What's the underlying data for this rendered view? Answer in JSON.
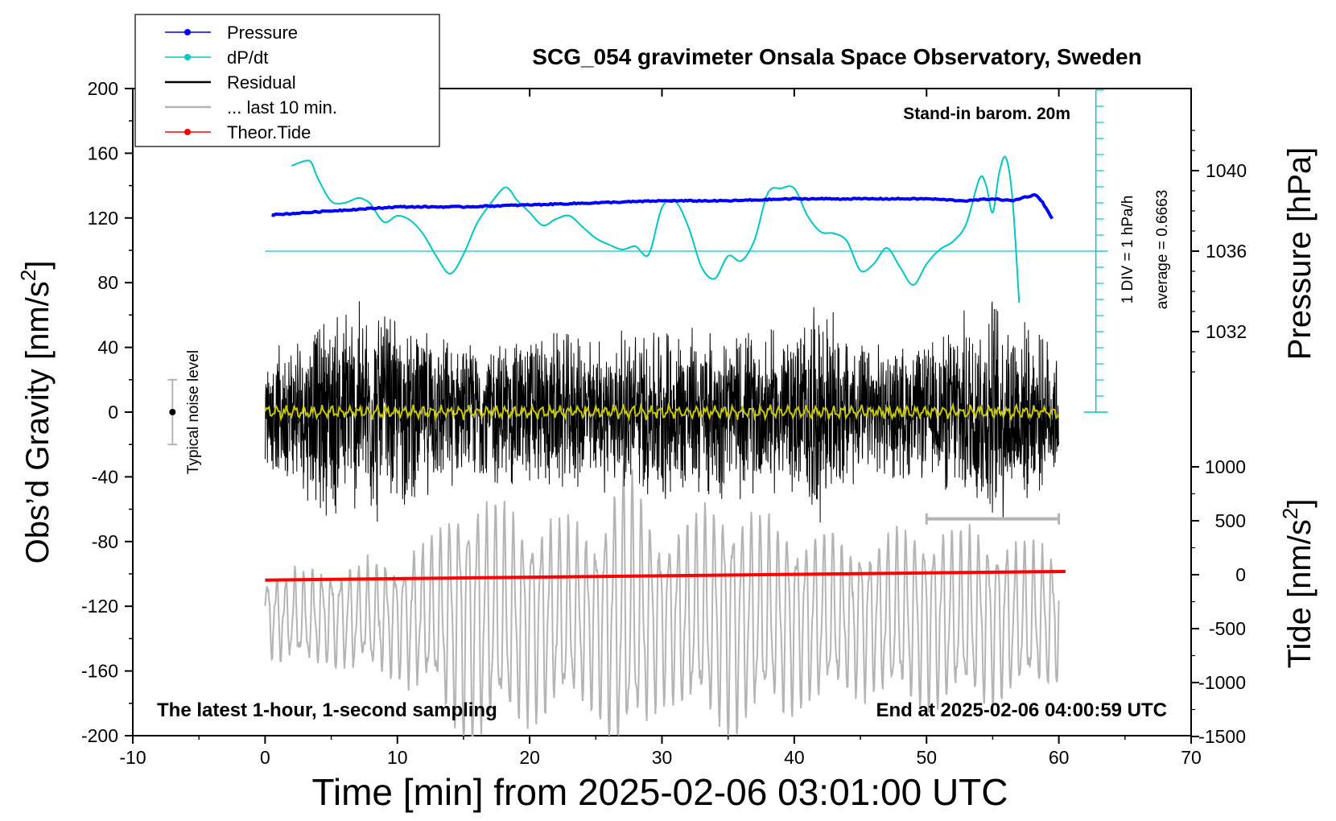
{
  "chart_data": {
    "type": "line",
    "title": "SCG_054 gravimeter Onsala Space Observatory, Sweden",
    "xlabel": "Time [min] from 2025-02-06 03:01:00 UTC",
    "ylabel_left": "Obs’d Gravity [nm/s",
    "ylabel_left_sup": "2",
    "ylabel_left_end": "]",
    "ylabel_right_pressure": "Pressure [hPa]",
    "ylabel_right_tide": "Tide [nm/s",
    "ylabel_right_tide_sup": "2",
    "ylabel_right_tide_end": "]",
    "xlim": [
      -10,
      70
    ],
    "ylim": [
      -200,
      200
    ],
    "x_ticks": [
      "-10",
      "0",
      "10",
      "20",
      "30",
      "40",
      "50",
      "60",
      "70"
    ],
    "y_ticks_left": [
      "200",
      "160",
      "120",
      "80",
      "40",
      "0",
      "-40",
      "-80",
      "-120",
      "-160",
      "-200"
    ],
    "pressure_ticks": [
      "1040",
      "1036",
      "1032"
    ],
    "tide_ticks": [
      "1000",
      "500",
      "0",
      "-500",
      "-1000",
      "-1500"
    ],
    "annotations": {
      "stand_in": "Stand-in barom. 20m",
      "div_label": "1 DIV = 1 hPa/h",
      "average_label": "average = 0.6663",
      "noise_label": "Typical noise level",
      "bottom_left": "The latest 1-hour, 1-second sampling",
      "bottom_right": "End at 2025-02-06 04:00:59 UTC"
    },
    "legend": [
      {
        "label": "Pressure",
        "color": "#0000ff",
        "marker": true
      },
      {
        "label": "dP/dt",
        "color": "#00c8c8",
        "marker": true
      },
      {
        "label": "Residual",
        "color": "#000000",
        "marker": false
      },
      {
        "label": "... last 10 min.",
        "color": "#b4b4b4",
        "marker": false
      },
      {
        "label": "Theor.Tide",
        "color": "#ff0000",
        "marker": true
      }
    ],
    "series": [
      {
        "name": "Pressure",
        "axis": "pressure_hPa",
        "color": "#0000ff",
        "x": [
          0.5,
          5,
          10,
          15,
          20,
          25,
          30,
          35,
          40,
          45,
          50,
          53,
          55,
          56.5,
          57.5,
          58.3,
          58.8,
          59.5
        ],
        "values": [
          1037.8,
          1038.0,
          1038.2,
          1038.2,
          1038.3,
          1038.4,
          1038.5,
          1038.5,
          1038.6,
          1038.6,
          1038.6,
          1038.5,
          1038.6,
          1038.5,
          1038.7,
          1038.8,
          1038.4,
          1037.6
        ]
      },
      {
        "name": "dP/dt",
        "axis": "pressure_div",
        "color": "#00c8c8",
        "x": [
          2,
          3,
          3.5,
          4,
          5,
          6,
          7,
          7.5,
          8,
          9,
          10,
          11,
          12,
          13,
          14,
          15,
          16,
          17,
          18,
          18.5,
          19,
          20,
          21,
          22,
          23,
          24,
          25,
          26,
          27,
          28,
          29,
          30,
          31,
          32,
          33,
          34,
          35,
          36,
          37,
          38,
          39,
          40,
          41,
          42,
          43,
          44,
          45,
          46,
          47,
          48,
          49,
          50,
          51,
          52,
          53,
          54,
          54.5,
          55,
          55.5,
          56,
          56.5,
          57
        ],
        "values": [
          5.3,
          5.6,
          5.5,
          4.5,
          3.1,
          3.0,
          3.3,
          3.2,
          2.9,
          1.8,
          2.2,
          1.9,
          1.0,
          -0.4,
          -1.4,
          -0.2,
          1.7,
          2.9,
          3.9,
          3.8,
          3.2,
          2.4,
          1.6,
          2.0,
          2.2,
          1.5,
          0.8,
          0.4,
          0.1,
          0.3,
          -0.2,
          2.7,
          3.1,
          1.5,
          -1.0,
          -1.7,
          -0.3,
          -0.6,
          0.7,
          3.6,
          3.9,
          3.9,
          2.2,
          1.2,
          1.1,
          0.6,
          -1.2,
          -0.8,
          0.2,
          -1.0,
          -2.1,
          -0.8,
          0.1,
          0.6,
          1.7,
          4.5,
          4.1,
          2.4,
          4.9,
          5.8,
          3.2,
          -3.2
        ]
      },
      {
        "name": "Residual",
        "axis": "gravity",
        "color": "#000000",
        "x": [
          0,
          60
        ],
        "amplitude_envelope": {
          "x": [
            0,
            5,
            8,
            11,
            15,
            20,
            25,
            30,
            35,
            40,
            41.5,
            45,
            50,
            55,
            58,
            60
          ],
          "values": [
            35,
            70,
            75,
            60,
            45,
            55,
            50,
            60,
            55,
            55,
            75,
            45,
            45,
            80,
            55,
            45
          ]
        }
      },
      {
        "name": "... last 10 min.",
        "axis": "gravity",
        "color": "#b4b4b4",
        "baseline": -127,
        "amplitude_envelope": {
          "x": [
            0,
            10,
            13,
            15,
            20,
            25,
            27,
            30,
            35,
            37,
            40,
            45,
            50,
            55,
            60
          ],
          "values": [
            25,
            35,
            50,
            75,
            60,
            55,
            90,
            50,
            70,
            60,
            55,
            45,
            55,
            50,
            40
          ]
        }
      },
      {
        "name": "Theor.Tide",
        "axis": "tide_nm",
        "color": "#ff0000",
        "x": [
          0,
          60.5
        ],
        "values": [
          -50,
          30
        ]
      }
    ],
    "noise_bar": {
      "x": -7,
      "center": 0,
      "half_range": 20
    },
    "gray_range_bar": {
      "x": [
        50,
        60
      ],
      "y": -66
    }
  }
}
